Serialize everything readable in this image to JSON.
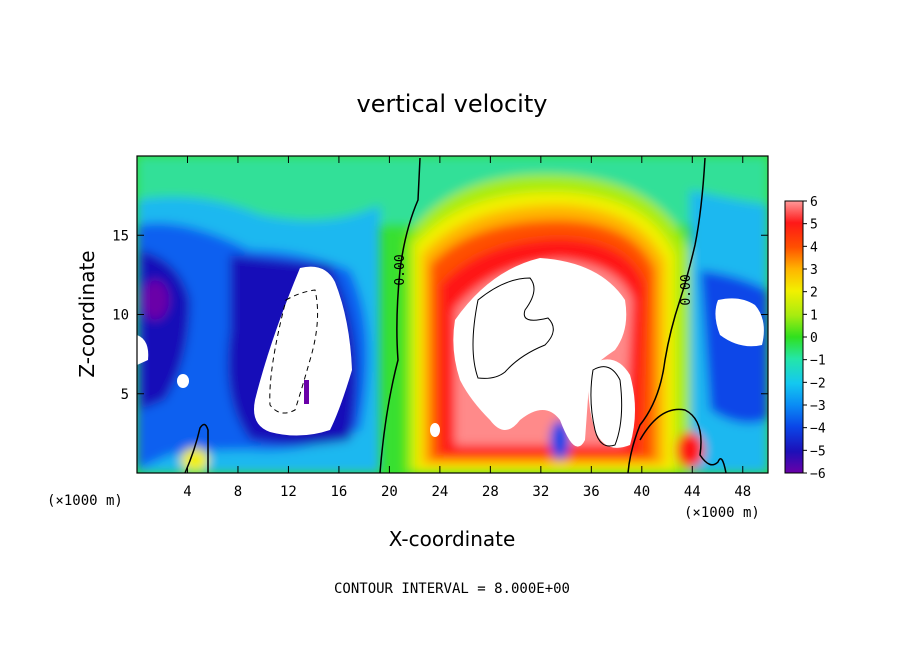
{
  "chart_data": {
    "type": "heatmap",
    "title": "vertical velocity",
    "xlabel": "X-coordinate",
    "ylabel": "Z-coordinate",
    "x_unit_label": "(×1000 m)",
    "x_unit_label_right": "(×1000 m)",
    "xlim": [
      0,
      50
    ],
    "ylim": [
      0,
      20
    ],
    "x_ticks": [
      "4",
      "8",
      "12",
      "16",
      "20",
      "24",
      "28",
      "32",
      "36",
      "40",
      "44",
      "48"
    ],
    "x_tick_values": [
      4,
      8,
      12,
      16,
      20,
      24,
      28,
      32,
      36,
      40,
      44,
      48
    ],
    "y_ticks": [
      "5",
      "10",
      "15"
    ],
    "y_tick_values": [
      5,
      10,
      15
    ],
    "colorbar": {
      "labels": [
        "6",
        "5",
        "4",
        "3",
        "2",
        "1",
        "0",
        "−1",
        "−2",
        "−3",
        "−4",
        "−5",
        "−6"
      ],
      "values": [
        6,
        5,
        4,
        3,
        2,
        1,
        0,
        -1,
        -2,
        -3,
        -4,
        -5,
        -6
      ],
      "range": [
        -6,
        6
      ]
    },
    "contour_labels": [
      "0.00",
      "0.00"
    ],
    "footer": "CONTOUR INTERVAL = 8.000E+00"
  }
}
